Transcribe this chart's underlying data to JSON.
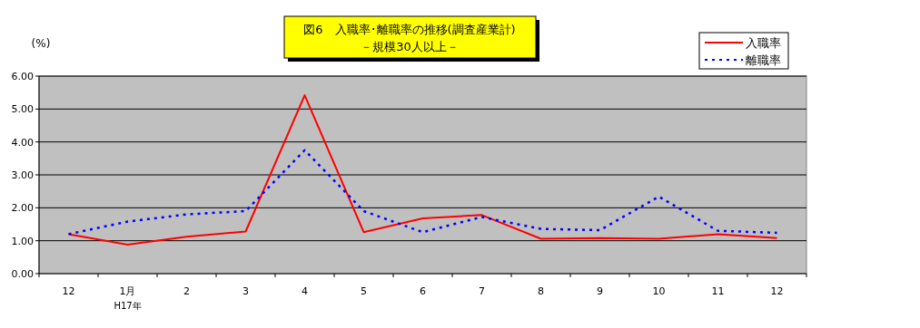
{
  "chart_data": {
    "type": "line",
    "title": "図6　入職率･離職率の推移(調査産業計)",
    "subtitle": "－規模30人以上－",
    "ylabel": "(%)",
    "categories": [
      "12",
      "1月",
      "2",
      "3",
      "4",
      "5",
      "6",
      "7",
      "8",
      "9",
      "10",
      "11",
      "12"
    ],
    "annotations": [
      "H17年"
    ],
    "series": [
      {
        "name": "入職率",
        "color": "#ff0000",
        "line_style": "solid",
        "values": [
          1.2,
          0.88,
          1.12,
          1.28,
          5.42,
          1.26,
          1.68,
          1.78,
          1.06,
          1.08,
          1.06,
          1.2,
          1.08
        ]
      },
      {
        "name": "離職率",
        "color": "#0000ff",
        "line_style": "dotted",
        "values": [
          1.2,
          1.58,
          1.8,
          1.9,
          3.75,
          1.9,
          1.26,
          1.72,
          1.36,
          1.32,
          2.34,
          1.3,
          1.24
        ]
      }
    ],
    "ylim": [
      0,
      6
    ],
    "yticks": [
      {
        "value": 0,
        "label": "0.00"
      },
      {
        "value": 1,
        "label": "1.00"
      },
      {
        "value": 2,
        "label": "2.00"
      },
      {
        "value": 3,
        "label": "3.00"
      },
      {
        "value": 4,
        "label": "4.00"
      },
      {
        "value": 5,
        "label": "5.00"
      },
      {
        "value": 6,
        "label": "6.00"
      }
    ],
    "grid": "y",
    "legend": "top right",
    "marker": "none"
  }
}
